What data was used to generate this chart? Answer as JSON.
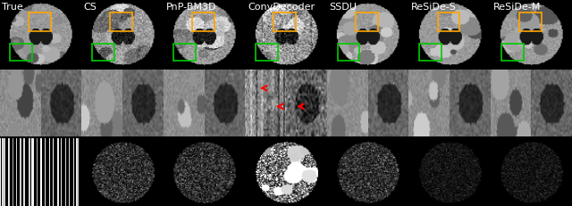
{
  "labels": [
    "True",
    "CS",
    "PnP-BM3D",
    "ConvDecoder",
    "SSDU",
    "ReSiDe-S",
    "ReSiDe-M"
  ],
  "n_cols": 7,
  "background_color": "#000000",
  "text_color": "#ffffff",
  "label_fontsize": 8,
  "orange_box_color": "#FFA500",
  "green_box_color": "#00CC00",
  "red_arrow_color": "#FF0000",
  "figsize": [
    6.4,
    2.31
  ],
  "dpi": 100
}
